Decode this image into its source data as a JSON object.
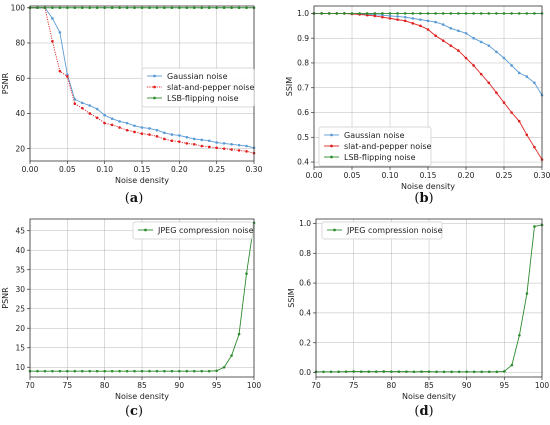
{
  "chart_data": [
    {
      "type": "line",
      "caption_letter": "a",
      "xlabel": "Noise density",
      "ylabel": "PSNR",
      "xlim": [
        0,
        0.3
      ],
      "ylim": [
        13,
        101
      ],
      "xticks": [
        0.0,
        0.05,
        0.1,
        0.15,
        0.2,
        0.25,
        0.3
      ],
      "xtick_labels": [
        "0.00",
        "0.05",
        "0.10",
        "0.15",
        "0.20",
        "0.25",
        "0.30"
      ],
      "yticks": [
        20,
        40,
        60,
        80,
        100
      ],
      "ytick_labels": [
        "20",
        "40",
        "60",
        "80",
        "100"
      ],
      "grid": true,
      "legend_position": "center-right",
      "series": [
        {
          "name": "Gaussian noise",
          "color": "#5b9bd5",
          "style": "solid",
          "x": [
            0,
            0.01,
            0.02,
            0.03,
            0.04,
            0.05,
            0.06,
            0.07,
            0.08,
            0.09,
            0.1,
            0.11,
            0.12,
            0.13,
            0.14,
            0.15,
            0.16,
            0.17,
            0.18,
            0.19,
            0.2,
            0.21,
            0.22,
            0.23,
            0.24,
            0.25,
            0.26,
            0.27,
            0.28,
            0.29,
            0.3
          ],
          "y": [
            100,
            100,
            100,
            94,
            86,
            62,
            48,
            46,
            44.5,
            42.5,
            39,
            37,
            35.5,
            34.5,
            33,
            32,
            31.5,
            30.5,
            29,
            28,
            27.5,
            26.5,
            25.5,
            25,
            24.5,
            23.5,
            23,
            22.5,
            22,
            21.5,
            20.5
          ]
        },
        {
          "name": "slat-and-pepper noise",
          "color": "#e02020",
          "style": "dotted",
          "x": [
            0,
            0.01,
            0.02,
            0.03,
            0.04,
            0.05,
            0.06,
            0.07,
            0.08,
            0.09,
            0.1,
            0.11,
            0.12,
            0.13,
            0.14,
            0.15,
            0.16,
            0.17,
            0.18,
            0.19,
            0.2,
            0.21,
            0.22,
            0.23,
            0.24,
            0.25,
            0.26,
            0.27,
            0.28,
            0.29,
            0.3
          ],
          "y": [
            100,
            100,
            100,
            81,
            64,
            61,
            45.5,
            43,
            40,
            37.5,
            34.5,
            33.5,
            32,
            30.5,
            29.5,
            28.5,
            28,
            27,
            25.5,
            24.5,
            24,
            23,
            22.5,
            21.5,
            21,
            20.5,
            20,
            19.5,
            19,
            18.5,
            17.5
          ]
        },
        {
          "name": "LSB-flipping noise",
          "color": "#2e8b2e",
          "style": "solid",
          "x": [
            0,
            0.01,
            0.02,
            0.03,
            0.04,
            0.05,
            0.06,
            0.07,
            0.08,
            0.09,
            0.1,
            0.11,
            0.12,
            0.13,
            0.14,
            0.15,
            0.16,
            0.17,
            0.18,
            0.19,
            0.2,
            0.21,
            0.22,
            0.23,
            0.24,
            0.25,
            0.26,
            0.27,
            0.28,
            0.29,
            0.3
          ],
          "y": [
            100,
            100,
            100,
            100,
            100,
            100,
            100,
            100,
            100,
            100,
            100,
            100,
            100,
            100,
            100,
            100,
            100,
            100,
            100,
            100,
            100,
            100,
            100,
            100,
            100,
            100,
            100,
            100,
            100,
            100,
            100
          ]
        }
      ]
    },
    {
      "type": "line",
      "caption_letter": "b",
      "xlabel": "Noise density",
      "ylabel": "SSIM",
      "xlim": [
        0,
        0.3
      ],
      "ylim": [
        0.38,
        1.03
      ],
      "xticks": [
        0.0,
        0.05,
        0.1,
        0.15,
        0.2,
        0.25,
        0.3
      ],
      "xtick_labels": [
        "0.00",
        "0.05",
        "0.10",
        "0.15",
        "0.20",
        "0.25",
        "0.30"
      ],
      "yticks": [
        0.4,
        0.5,
        0.6,
        0.7,
        0.8,
        0.9,
        1.0
      ],
      "ytick_labels": [
        "0.4",
        "0.5",
        "0.6",
        "0.7",
        "0.8",
        "0.9",
        "1.0"
      ],
      "grid": true,
      "legend_position": "lower-left",
      "series": [
        {
          "name": "Gaussian noise",
          "color": "#5b9bd5",
          "style": "solid",
          "x": [
            0,
            0.01,
            0.02,
            0.03,
            0.04,
            0.05,
            0.06,
            0.07,
            0.08,
            0.09,
            0.1,
            0.11,
            0.12,
            0.13,
            0.14,
            0.15,
            0.16,
            0.17,
            0.18,
            0.19,
            0.2,
            0.21,
            0.22,
            0.23,
            0.24,
            0.25,
            0.26,
            0.27,
            0.28,
            0.29,
            0.3
          ],
          "y": [
            1.0,
            1.0,
            1.0,
            1.0,
            1.0,
            0.998,
            0.997,
            0.996,
            0.995,
            0.993,
            0.99,
            0.988,
            0.985,
            0.98,
            0.975,
            0.97,
            0.965,
            0.955,
            0.94,
            0.93,
            0.92,
            0.9,
            0.885,
            0.87,
            0.845,
            0.82,
            0.79,
            0.76,
            0.745,
            0.72,
            0.67
          ]
        },
        {
          "name": "slat-and-pepper noise",
          "color": "#e02020",
          "style": "solid",
          "x": [
            0,
            0.01,
            0.02,
            0.03,
            0.04,
            0.05,
            0.06,
            0.07,
            0.08,
            0.09,
            0.1,
            0.11,
            0.12,
            0.13,
            0.14,
            0.15,
            0.16,
            0.17,
            0.18,
            0.19,
            0.2,
            0.21,
            0.22,
            0.23,
            0.24,
            0.25,
            0.26,
            0.27,
            0.28,
            0.29,
            0.3
          ],
          "y": [
            1.0,
            1.0,
            1.0,
            1.0,
            1.0,
            0.998,
            0.996,
            0.993,
            0.99,
            0.985,
            0.98,
            0.975,
            0.97,
            0.96,
            0.95,
            0.935,
            0.91,
            0.89,
            0.87,
            0.85,
            0.82,
            0.79,
            0.755,
            0.72,
            0.68,
            0.64,
            0.6,
            0.565,
            0.51,
            0.46,
            0.41
          ]
        },
        {
          "name": "LSB-flipping noise",
          "color": "#2e8b2e",
          "style": "solid",
          "x": [
            0,
            0.01,
            0.02,
            0.03,
            0.04,
            0.05,
            0.06,
            0.07,
            0.08,
            0.09,
            0.1,
            0.11,
            0.12,
            0.13,
            0.14,
            0.15,
            0.16,
            0.17,
            0.18,
            0.19,
            0.2,
            0.21,
            0.22,
            0.23,
            0.24,
            0.25,
            0.26,
            0.27,
            0.28,
            0.29,
            0.3
          ],
          "y": [
            1.0,
            1.0,
            1.0,
            1.0,
            1.0,
            1.0,
            1.0,
            1.0,
            1.0,
            1.0,
            1.0,
            1.0,
            1.0,
            1.0,
            1.0,
            1.0,
            1.0,
            1.0,
            1.0,
            1.0,
            1.0,
            1.0,
            1.0,
            1.0,
            1.0,
            1.0,
            1.0,
            1.0,
            1.0,
            1.0,
            1.0
          ]
        }
      ]
    },
    {
      "type": "line",
      "caption_letter": "c",
      "xlabel": "Noise density",
      "ylabel": "PSNR",
      "xlim": [
        70,
        100
      ],
      "ylim": [
        7.5,
        48
      ],
      "xticks": [
        70,
        75,
        80,
        85,
        90,
        95,
        100
      ],
      "xtick_labels": [
        "70",
        "75",
        "80",
        "85",
        "90",
        "95",
        "100"
      ],
      "yticks": [
        10,
        15,
        20,
        25,
        30,
        35,
        40,
        45
      ],
      "ytick_labels": [
        "10",
        "15",
        "20",
        "25",
        "30",
        "35",
        "40",
        "45"
      ],
      "grid": true,
      "legend_position": "upper-right",
      "series": [
        {
          "name": "JPEG compression noise",
          "color": "#2e8b2e",
          "style": "solid",
          "x": [
            70,
            71,
            72,
            73,
            74,
            75,
            76,
            77,
            78,
            79,
            80,
            81,
            82,
            83,
            84,
            85,
            86,
            87,
            88,
            89,
            90,
            91,
            92,
            93,
            94,
            95,
            96,
            97,
            98,
            99,
            100
          ],
          "y": [
            9,
            9,
            9,
            9,
            9,
            9,
            9,
            9,
            9,
            9,
            9,
            9,
            9,
            9,
            9,
            9,
            9,
            9,
            9,
            9,
            9,
            9,
            9,
            9,
            9,
            9.1,
            10,
            13,
            18.5,
            34,
            47
          ]
        }
      ]
    },
    {
      "type": "line",
      "caption_letter": "d",
      "xlabel": "Noise density",
      "ylabel": "SSIM",
      "xlim": [
        70,
        100
      ],
      "ylim": [
        -0.03,
        1.03
      ],
      "xticks": [
        70,
        75,
        80,
        85,
        90,
        95,
        100
      ],
      "xtick_labels": [
        "70",
        "75",
        "80",
        "85",
        "90",
        "95",
        "100"
      ],
      "yticks": [
        0.0,
        0.2,
        0.4,
        0.6,
        0.8,
        1.0
      ],
      "ytick_labels": [
        "0.0",
        "0.2",
        "0.4",
        "0.6",
        "0.8",
        "1.0"
      ],
      "grid": true,
      "legend_position": "upper-left",
      "series": [
        {
          "name": "JPEG compression noise",
          "color": "#2e8b2e",
          "style": "solid",
          "x": [
            70,
            71,
            72,
            73,
            74,
            75,
            76,
            77,
            78,
            79,
            80,
            81,
            82,
            83,
            84,
            85,
            86,
            87,
            88,
            89,
            90,
            91,
            92,
            93,
            94,
            95,
            96,
            97,
            98,
            99,
            100
          ],
          "y": [
            0.005,
            0.005,
            0.005,
            0.005,
            0.006,
            0.007,
            0.006,
            0.006,
            0.006,
            0.007,
            0.006,
            0.006,
            0.006,
            0.005,
            0.006,
            0.006,
            0.005,
            0.005,
            0.005,
            0.005,
            0.005,
            0.005,
            0.005,
            0.005,
            0.005,
            0.008,
            0.05,
            0.25,
            0.53,
            0.98,
            0.99
          ]
        }
      ]
    }
  ]
}
